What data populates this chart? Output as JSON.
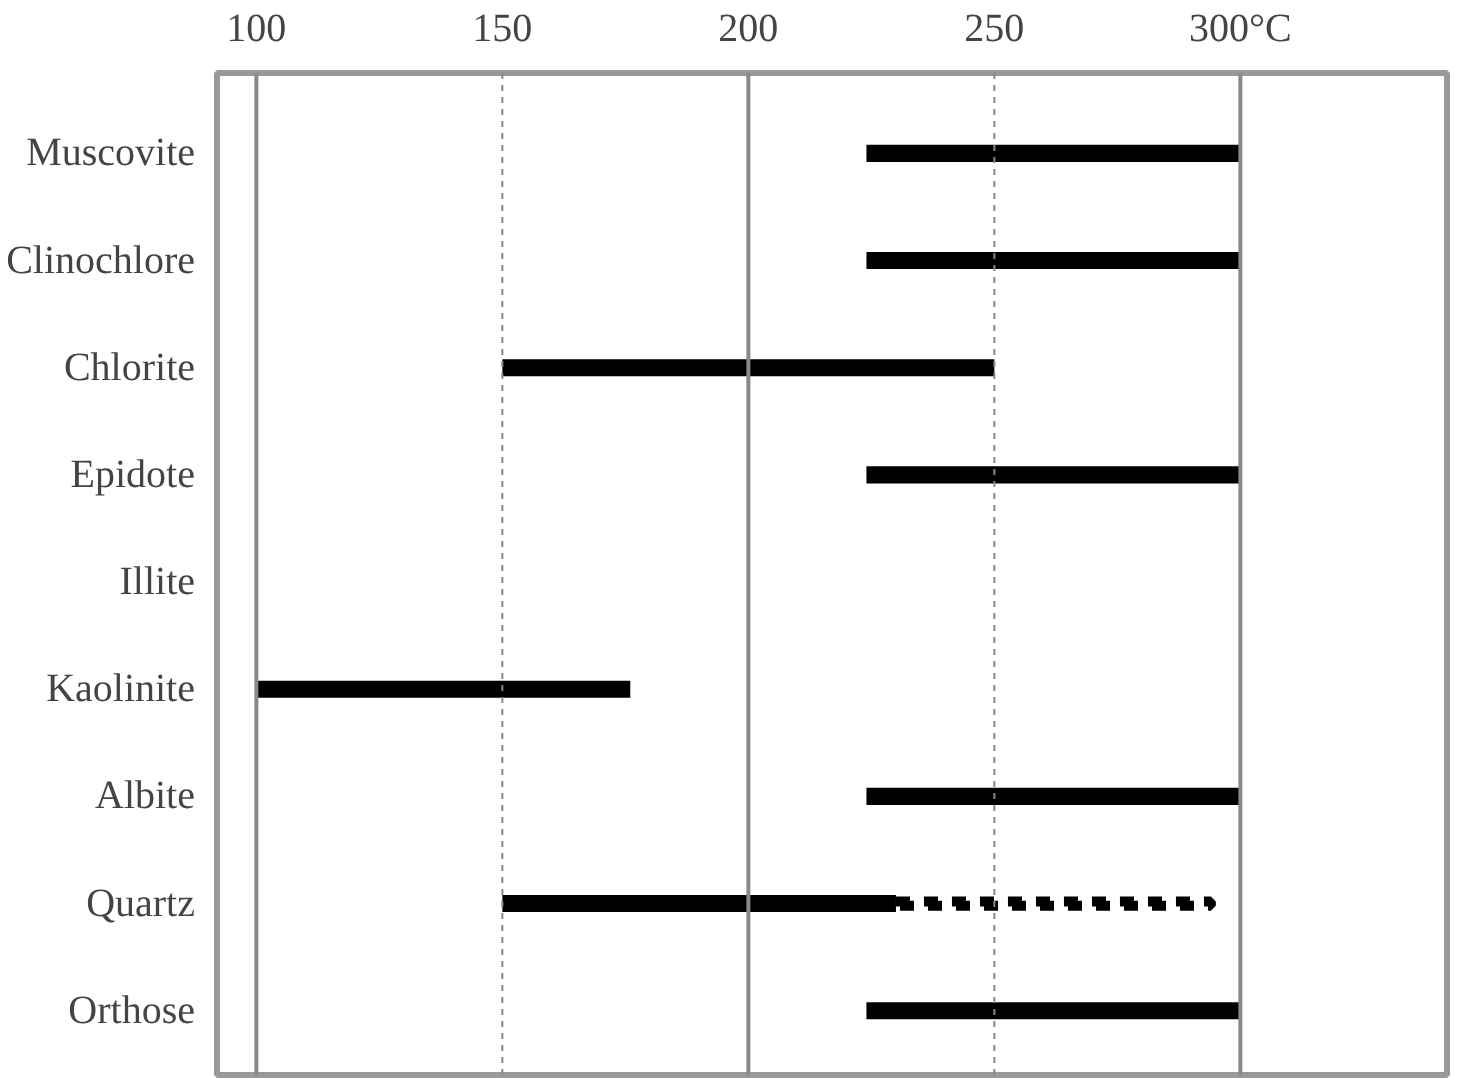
{
  "chart_data": {
    "type": "bar",
    "orientation": "horizontal",
    "categories": [
      "Muscovite",
      "Clinochlore",
      "Chlorite",
      "Epidote",
      "Illite",
      "Kaolinite",
      "Albite",
      "Quartz",
      "Orthose"
    ],
    "series": [
      {
        "color": "#000000",
        "base": [
          224,
          224,
          150,
          224,
          null,
          100,
          224,
          150,
          224
        ],
        "values": [
          76,
          76,
          100,
          76,
          null,
          76,
          76,
          80,
          76
        ]
      },
      {
        "color": "#000000",
        "line_style": "dotted",
        "base": [
          null,
          null,
          null,
          null,
          null,
          null,
          null,
          230,
          null
        ],
        "values": [
          null,
          null,
          null,
          null,
          null,
          null,
          null,
          64,
          null
        ]
      }
    ],
    "xlim": [
      92,
      342
    ],
    "xticks": [
      100,
      150,
      200,
      250,
      {
        "value": 300,
        "label": "300°C"
      }
    ],
    "grid": "x"
  }
}
